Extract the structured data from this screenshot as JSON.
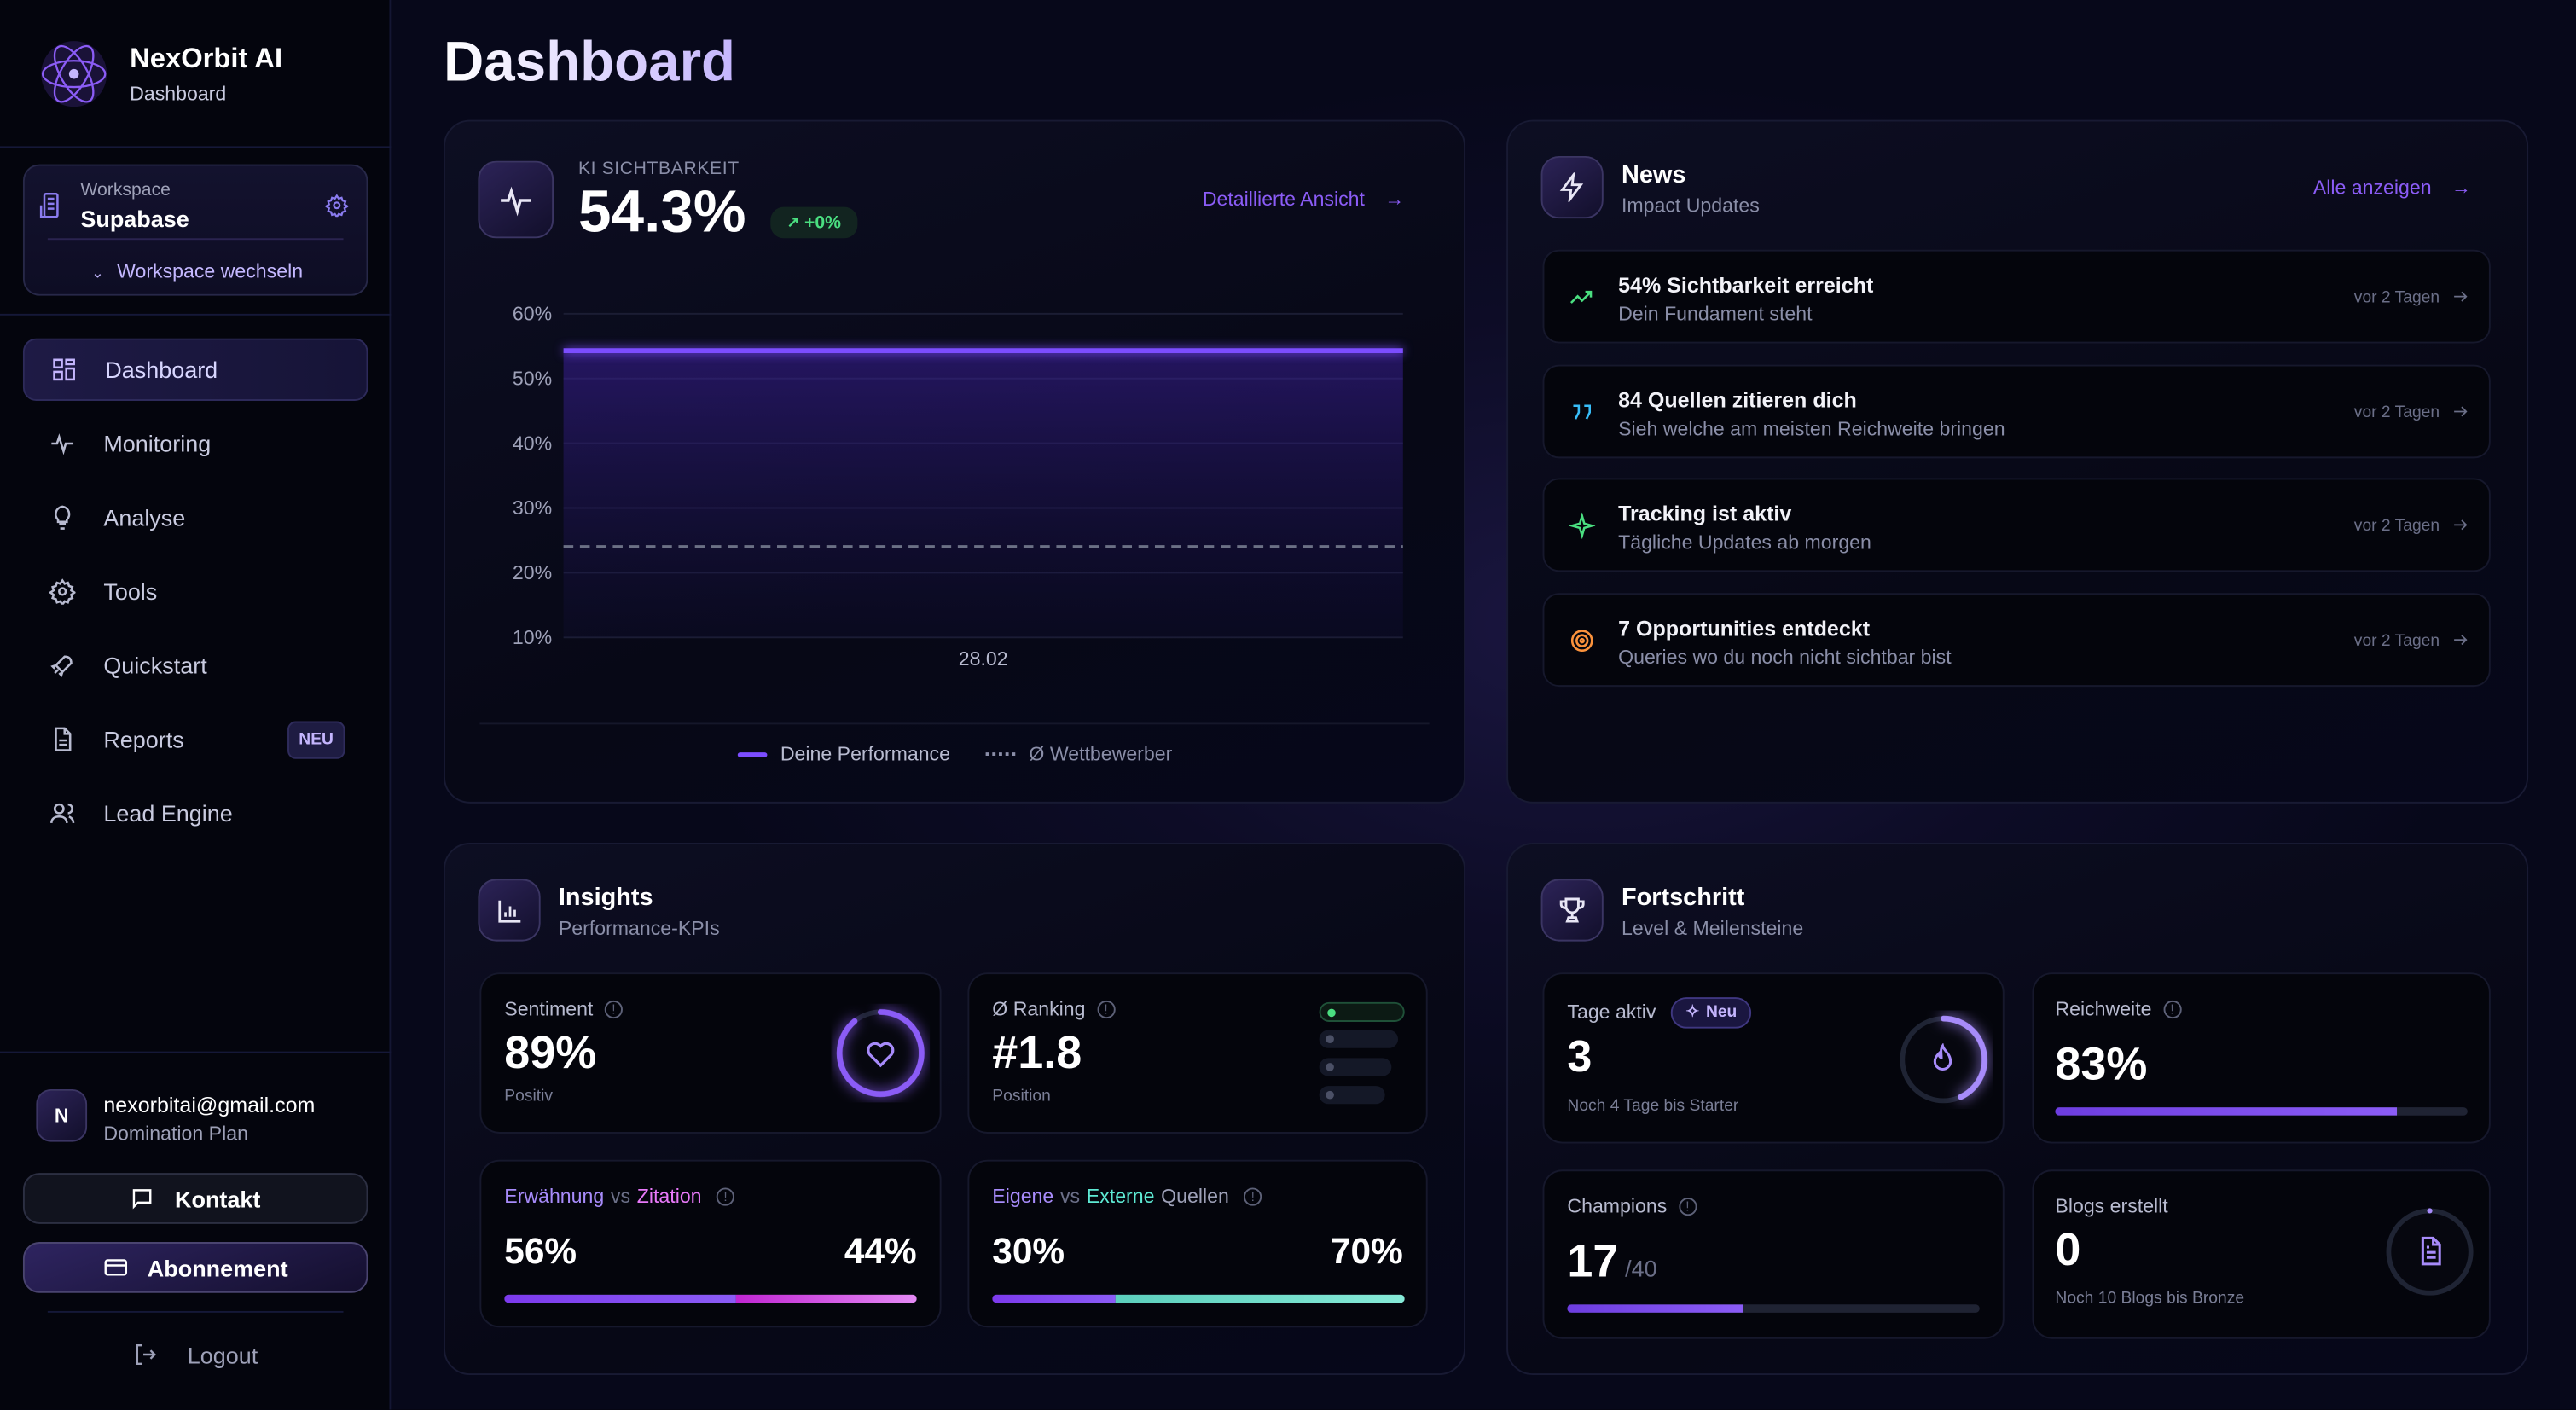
{
  "app": {
    "name": "NexOrbit AI",
    "subtitle": "Dashboard"
  },
  "workspace": {
    "label": "Workspace",
    "name": "Supabase",
    "switch_label": "Workspace wechseln"
  },
  "nav": [
    {
      "label": "Dashboard",
      "icon": "grid-icon",
      "active": true
    },
    {
      "label": "Monitoring",
      "icon": "activity-icon"
    },
    {
      "label": "Analyse",
      "icon": "lightbulb-icon"
    },
    {
      "label": "Tools",
      "icon": "gear-icon"
    },
    {
      "label": "Quickstart",
      "icon": "rocket-icon"
    },
    {
      "label": "Reports",
      "icon": "file-icon",
      "badge": "NEU"
    },
    {
      "label": "Lead Engine",
      "icon": "users-icon"
    }
  ],
  "user": {
    "initial": "N",
    "email": "nexorbitai@gmail.com",
    "plan": "Domination Plan"
  },
  "buttons": {
    "contact": "Kontakt",
    "subscription": "Abonnement",
    "logout": "Logout"
  },
  "page_title": "Dashboard",
  "visibility": {
    "label": "KI SICHTBARKEIT",
    "value": "54.3%",
    "delta": "+0%",
    "link": "Detaillierte Ansicht"
  },
  "chart_data": {
    "type": "line",
    "x": [
      "28.02"
    ],
    "ylim": [
      10,
      60
    ],
    "yticks": [
      "60%",
      "50%",
      "40%",
      "30%",
      "20%",
      "10%"
    ],
    "ytick_values": [
      60,
      50,
      40,
      30,
      20,
      10
    ],
    "grid": true,
    "legend_placement": "bottom",
    "series": [
      {
        "name": "Deine Performance",
        "values": [
          54.3
        ],
        "color": "#7c4dff",
        "style": "solid"
      },
      {
        "name": "Ø Wettbewerber",
        "values": [
          24
        ],
        "color": "#6b7085",
        "style": "dashed"
      }
    ]
  },
  "news": {
    "title": "News",
    "subtitle": "Impact Updates",
    "link": "Alle anzeigen",
    "items": [
      {
        "title": "54% Sichtbarkeit erreicht",
        "subtitle": "Dein Fundament steht",
        "time": "vor 2 Tagen",
        "icon": "trending-up-icon",
        "color": "#4ade80"
      },
      {
        "title": "84 Quellen zitieren dich",
        "subtitle": "Sieh welche am meisten Reichweite bringen",
        "time": "vor 2 Tagen",
        "icon": "quote-icon",
        "color": "#38bdf8"
      },
      {
        "title": "Tracking ist aktiv",
        "subtitle": "Tägliche Updates ab morgen",
        "time": "vor 2 Tagen",
        "icon": "sparkle-icon",
        "color": "#4ade80"
      },
      {
        "title": "7 Opportunities entdeckt",
        "subtitle": "Queries wo du noch nicht sichtbar bist",
        "time": "vor 2 Tagen",
        "icon": "target-icon",
        "color": "#fb923c"
      }
    ]
  },
  "insights": {
    "title": "Insights",
    "subtitle": "Performance-KPIs",
    "sentiment": {
      "label": "Sentiment",
      "value": "89%",
      "caption": "Positiv",
      "ring_fraction": 0.89
    },
    "ranking": {
      "label": "Ø Ranking",
      "value": "#1.8",
      "caption": "Position"
    },
    "mention": {
      "label_a": "Erwähnung",
      "vs": "vs",
      "label_b": "Zitation",
      "value_a": "56%",
      "value_b": "44%",
      "fraction_a": 0.56
    },
    "sources": {
      "label_a": "Eigene",
      "vs": "vs",
      "label_b": "Externe",
      "label_c": "Quellen",
      "value_a": "30%",
      "value_b": "70%",
      "fraction_a": 0.3
    }
  },
  "progress": {
    "title": "Fortschritt",
    "subtitle": "Level & Meilensteine",
    "days": {
      "label": "Tage aktiv",
      "badge": "Neu",
      "value": "3",
      "caption": "Noch 4 Tage bis Starter",
      "ring_fraction": 0.43
    },
    "reach": {
      "label": "Reichweite",
      "value": "83%",
      "fraction": 0.83
    },
    "champions": {
      "label": "Champions",
      "value": "17",
      "total": "/40",
      "fraction": 0.425
    },
    "blogs": {
      "label": "Blogs erstellt",
      "value": "0",
      "caption": "Noch 10 Blogs bis Bronze",
      "ring_fraction": 0
    }
  }
}
